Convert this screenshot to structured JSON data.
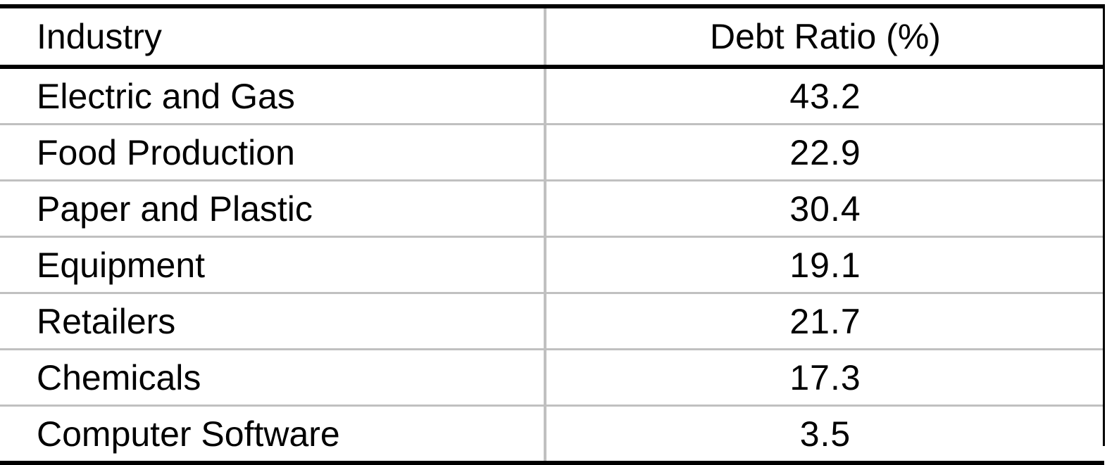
{
  "table": {
    "headers": {
      "industry": "Industry",
      "ratio": "Debt Ratio (%)"
    },
    "rows": [
      {
        "industry": "Electric and Gas",
        "ratio": "43.2"
      },
      {
        "industry": "Food Production",
        "ratio": "22.9"
      },
      {
        "industry": "Paper and Plastic",
        "ratio": "30.4"
      },
      {
        "industry": "Equipment",
        "ratio": "19.1"
      },
      {
        "industry": "Retailers",
        "ratio": "21.7"
      },
      {
        "industry": "Chemicals",
        "ratio": "17.3"
      },
      {
        "industry": "Computer Software",
        "ratio": "3.5"
      }
    ]
  }
}
